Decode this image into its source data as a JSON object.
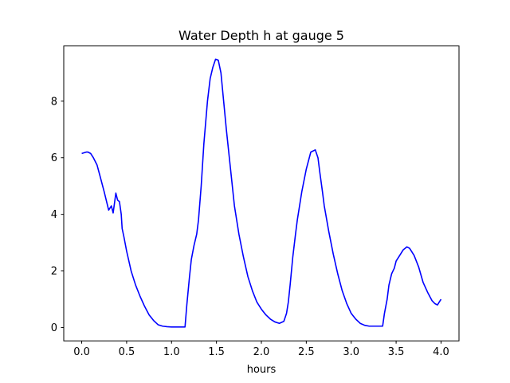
{
  "chart_data": {
    "type": "line",
    "title": "Water Depth h at gauge 5",
    "xlabel": "hours",
    "ylabel": "",
    "xlim": [
      -0.2,
      4.2
    ],
    "ylim": [
      -0.47,
      9.95
    ],
    "xticks": [
      0.0,
      0.5,
      1.0,
      1.5,
      2.0,
      2.5,
      3.0,
      3.5,
      4.0
    ],
    "xtick_labels": [
      "0.0",
      "0.5",
      "1.0",
      "1.5",
      "2.0",
      "2.5",
      "3.0",
      "3.5",
      "4.0"
    ],
    "yticks": [
      0,
      2,
      4,
      6,
      8
    ],
    "ytick_labels": [
      "0",
      "2",
      "4",
      "6",
      "8"
    ],
    "grid": false,
    "series": [
      {
        "color": "#0000ff",
        "x": [
          0.0,
          0.05,
          0.07,
          0.1,
          0.13,
          0.17,
          0.2,
          0.25,
          0.3,
          0.33,
          0.35,
          0.38,
          0.4,
          0.42,
          0.44,
          0.45,
          0.47,
          0.5,
          0.55,
          0.6,
          0.65,
          0.7,
          0.75,
          0.8,
          0.85,
          0.9,
          0.95,
          1.0,
          1.05,
          1.1,
          1.13,
          1.15,
          1.17,
          1.2,
          1.22,
          1.25,
          1.28,
          1.3,
          1.33,
          1.36,
          1.4,
          1.43,
          1.46,
          1.49,
          1.52,
          1.55,
          1.58,
          1.61,
          1.65,
          1.7,
          1.75,
          1.8,
          1.85,
          1.9,
          1.95,
          2.0,
          2.05,
          2.1,
          2.15,
          2.2,
          2.25,
          2.28,
          2.3,
          2.32,
          2.35,
          2.38,
          2.4,
          2.45,
          2.5,
          2.55,
          2.6,
          2.63,
          2.65,
          2.68,
          2.7,
          2.75,
          2.8,
          2.85,
          2.9,
          2.95,
          3.0,
          3.05,
          3.1,
          3.15,
          3.2,
          3.25,
          3.3,
          3.35,
          3.37,
          3.4,
          3.42,
          3.45,
          3.48,
          3.5,
          3.55,
          3.58,
          3.62,
          3.65,
          3.7,
          3.75,
          3.8,
          3.85,
          3.9,
          3.93,
          3.96,
          3.98,
          4.0
        ],
        "y": [
          6.15,
          6.2,
          6.2,
          6.15,
          6.0,
          5.75,
          5.4,
          4.8,
          4.15,
          4.3,
          4.05,
          4.75,
          4.5,
          4.45,
          4.0,
          3.5,
          3.2,
          2.7,
          2.0,
          1.5,
          1.1,
          0.75,
          0.45,
          0.25,
          0.1,
          0.05,
          0.03,
          0.02,
          0.02,
          0.02,
          0.02,
          0.02,
          0.8,
          1.8,
          2.4,
          2.9,
          3.3,
          3.8,
          5.0,
          6.5,
          8.0,
          8.8,
          9.2,
          9.48,
          9.45,
          9.0,
          8.0,
          7.0,
          5.8,
          4.3,
          3.3,
          2.5,
          1.8,
          1.3,
          0.9,
          0.65,
          0.45,
          0.3,
          0.2,
          0.15,
          0.22,
          0.5,
          0.9,
          1.5,
          2.5,
          3.3,
          3.8,
          4.8,
          5.6,
          6.2,
          6.28,
          6.0,
          5.5,
          4.8,
          4.3,
          3.4,
          2.6,
          1.9,
          1.3,
          0.85,
          0.5,
          0.3,
          0.15,
          0.08,
          0.05,
          0.05,
          0.05,
          0.05,
          0.5,
          1.0,
          1.5,
          1.9,
          2.1,
          2.35,
          2.6,
          2.75,
          2.85,
          2.8,
          2.55,
          2.15,
          1.6,
          1.25,
          0.95,
          0.85,
          0.8,
          0.9,
          1.0
        ]
      }
    ]
  }
}
